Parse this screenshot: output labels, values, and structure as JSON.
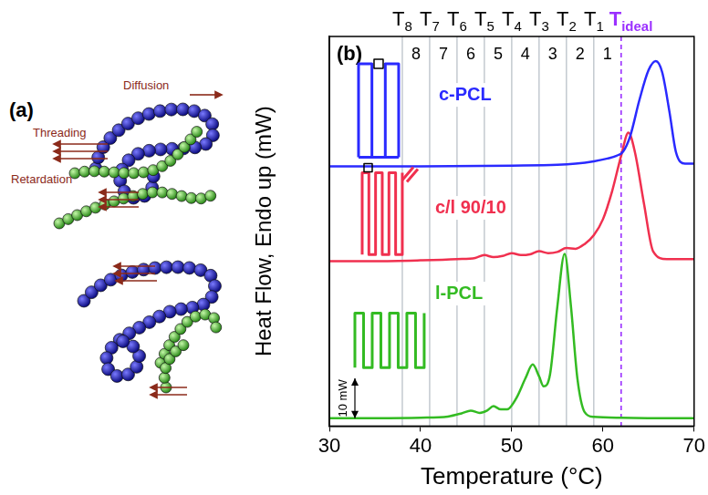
{
  "chart_data": {
    "type": "line",
    "panel_label": "(b)",
    "x_label": "Temperature (°C)",
    "y_label": "Heat Flow, Endo up (mW)",
    "xlim": [
      30,
      70
    ],
    "xticks": [
      30,
      40,
      50,
      60,
      70
    ],
    "ylim": [
      0,
      98
    ],
    "tick_labels": "x",
    "grid": false,
    "series": [
      {
        "name": "c-PCL",
        "color": "#2a2aff",
        "x": [
          30,
          40,
          50,
          55,
          57,
          59,
          60.5,
          61.5,
          62.2,
          63,
          64,
          65,
          65.8,
          66.5,
          67.3,
          68,
          69,
          70
        ],
        "values": [
          65.3,
          65.3,
          65.5,
          65.7,
          66,
          66.6,
          67.3,
          68,
          69,
          73,
          82,
          89.5,
          91.8,
          89,
          79,
          69,
          66,
          66
        ]
      },
      {
        "name": "c/l 90/10",
        "color": "#f0304f",
        "x": [
          30,
          35,
          40,
          44,
          46,
          47,
          48,
          49,
          50,
          51,
          52,
          53,
          54,
          55,
          56,
          57,
          58,
          59,
          60,
          61,
          62,
          62.8,
          63.5,
          64.5,
          65.5,
          67,
          70
        ],
        "values": [
          41.5,
          41.5,
          41.7,
          42,
          42.3,
          43,
          42.5,
          42.8,
          43.5,
          43,
          43.2,
          44,
          43.5,
          43.8,
          44.8,
          44.6,
          45.8,
          48,
          52,
          59,
          68,
          73.8,
          69,
          56,
          44,
          42,
          42
        ]
      },
      {
        "name": "l-PCL",
        "color": "#33bb22",
        "x": [
          30,
          35,
          40,
          43,
          44.5,
          45.5,
          46.5,
          47.3,
          48,
          48.8,
          49.5,
          50.5,
          51.5,
          52.3,
          53,
          53.5,
          54.2,
          55,
          55.8,
          56.5,
          57.2,
          58,
          59,
          62,
          66,
          70
        ],
        "values": [
          2,
          2,
          2.1,
          2.4,
          3.2,
          3.9,
          3.3,
          3.9,
          5,
          4.2,
          4.2,
          7,
          12,
          15.5,
          12.5,
          10,
          13,
          30,
          43.3,
          30,
          12,
          3.5,
          2.3,
          2.1,
          2,
          2
        ]
      }
    ],
    "reference_lines": [
      {
        "label": "T8",
        "x": 38
      },
      {
        "label": "T7",
        "x": 41
      },
      {
        "label": "T6",
        "x": 44
      },
      {
        "label": "T5",
        "x": 47
      },
      {
        "label": "T4",
        "x": 50
      },
      {
        "label": "T3",
        "x": 53
      },
      {
        "label": "T2",
        "x": 56
      },
      {
        "label": "T1",
        "x": 59
      },
      {
        "label": "Tideal",
        "x": 62,
        "color": "#9b30ff",
        "line_style": "dashed"
      }
    ],
    "region_labels": [
      "8",
      "7",
      "6",
      "5",
      "4",
      "3",
      "2",
      "1"
    ],
    "scale_bar": {
      "value": 10,
      "label": "10 mW"
    }
  },
  "panel_a": {
    "label": "(a)",
    "arrow_labels": [
      "Diffusion",
      "Threading",
      "Retardation"
    ]
  }
}
